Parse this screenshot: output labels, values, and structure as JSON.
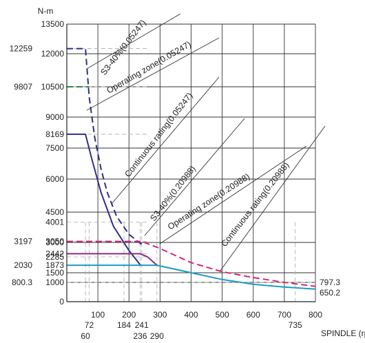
{
  "chart_data": {
    "type": "line",
    "title": "",
    "ylabel": "N-m",
    "xlabel": "SPINDLE (rpm)",
    "xlim": [
      0,
      800
    ],
    "ylim": [
      0,
      13500
    ],
    "grid": true,
    "x_ticks": [
      "100",
      "200",
      "300",
      "400",
      "500",
      "600",
      "700",
      "800"
    ],
    "y_ticks": [
      "0",
      "1000",
      "1500",
      "3000",
      "4500",
      "6000",
      "7500",
      "9000",
      "10500",
      "12000",
      "13500"
    ],
    "y_tick_values": [
      0,
      1000,
      1500,
      3000,
      4500,
      6000,
      7500,
      9000,
      10500,
      12000,
      13500
    ],
    "y_inner_marks": [
      {
        "label": "4001",
        "value": 4001
      },
      {
        "label": "3050",
        "value": 3050
      },
      {
        "label": "2442",
        "value": 2442
      },
      {
        "label": "2285",
        "value": 2285
      },
      {
        "label": "1873",
        "value": 1873
      },
      {
        "label": "8169",
        "value": 8169
      }
    ],
    "y_outer_marks": [
      {
        "label": "12259",
        "value": 12259
      },
      {
        "label": "9807",
        "value": 10500
      },
      {
        "label": "3197",
        "value": 3050
      },
      {
        "label": "2030",
        "value": 1873
      },
      {
        "label": "800.3",
        "value": 1000
      }
    ],
    "x_marks": [
      {
        "label": "72",
        "value": 72,
        "row": 1
      },
      {
        "label": "184",
        "value": 184,
        "row": 1
      },
      {
        "label": "241",
        "value": 241,
        "row": 1
      },
      {
        "label": "735",
        "value": 735,
        "row": 1
      },
      {
        "label": "60",
        "value": 60,
        "row": 2
      },
      {
        "label": "236",
        "value": 236,
        "row": 2
      },
      {
        "label": "290",
        "value": 290,
        "row": 2
      }
    ],
    "end_labels": [
      {
        "label": "797.3",
        "value": 797.3
      },
      {
        "label": "650.2",
        "value": 650.2
      }
    ],
    "series": [
      {
        "name": "S3-40%(0.05247)",
        "color": "#2a2f87",
        "style": "dashed",
        "points": [
          [
            0,
            12259
          ],
          [
            60,
            12259
          ],
          [
            72,
            10000
          ],
          [
            90,
            8000
          ],
          [
            110,
            6500
          ],
          [
            130,
            5400
          ],
          [
            160,
            4300
          ],
          [
            200,
            3400
          ],
          [
            241,
            2900
          ]
        ]
      },
      {
        "name": "Operating zone(0.05247)",
        "color": "#2e8a4e",
        "style": "dashed",
        "points": [
          [
            0,
            10500
          ],
          [
            72,
            10500
          ]
        ]
      },
      {
        "name": "Continuous rating(0.05247)",
        "color": "#2e2f8a",
        "style": "solid",
        "points": [
          [
            0,
            8169
          ],
          [
            60,
            8169
          ],
          [
            80,
            7000
          ],
          [
            110,
            5400
          ],
          [
            150,
            3800
          ],
          [
            200,
            2600
          ],
          [
            236,
            1900
          ]
        ]
      },
      {
        "name": "S3-40%(0.20988)",
        "color": "#d6247a",
        "style": "dashed",
        "points": [
          [
            0,
            3050
          ],
          [
            241,
            3050
          ],
          [
            300,
            2700
          ],
          [
            400,
            2000
          ],
          [
            500,
            1550
          ],
          [
            600,
            1250
          ],
          [
            700,
            1000
          ],
          [
            800,
            797.3
          ]
        ]
      },
      {
        "name": "Operating zone(0.20988)",
        "color": "#8a2a8a",
        "style": "solid",
        "points": [
          [
            0,
            2442
          ],
          [
            236,
            2442
          ],
          [
            260,
            2285
          ],
          [
            290,
            1873
          ]
        ]
      },
      {
        "name": "Continuous rating(0.20988)",
        "color": "#1b9bc4",
        "style": "solid",
        "points": [
          [
            0,
            1873
          ],
          [
            290,
            1873
          ],
          [
            400,
            1500
          ],
          [
            500,
            1150
          ],
          [
            600,
            900
          ],
          [
            700,
            760
          ],
          [
            800,
            650.2
          ]
        ]
      }
    ],
    "annotations": [
      "S3-40%(0.05247)",
      "Operating zone(0.05247)",
      "Continuous rating(0.05247)",
      "S3-40%(0.20988)",
      "Operating zone(0.20988)",
      "Continuous rating(0.20988)"
    ]
  }
}
